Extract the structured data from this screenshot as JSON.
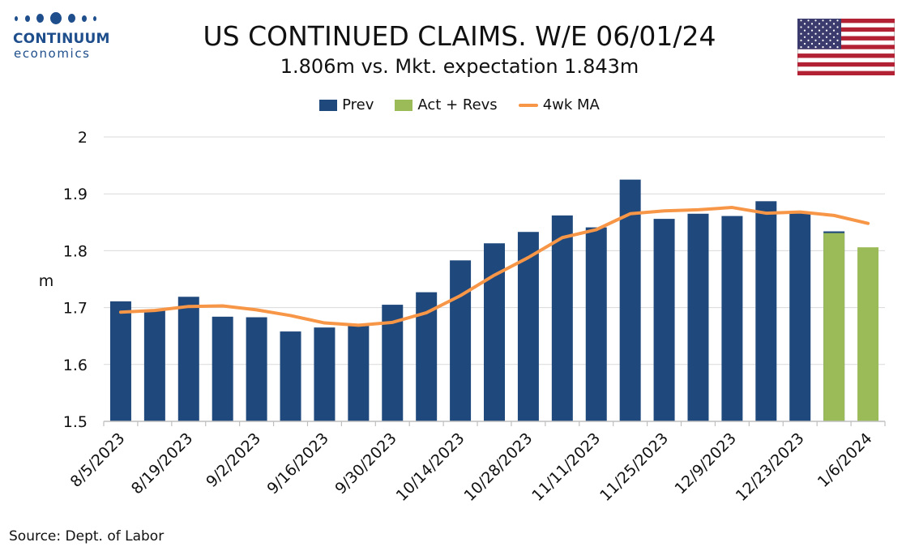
{
  "logo": {
    "word": "CONTINUUM",
    "sub": "economics",
    "icon": "continuum-logo-dots",
    "color": "#1f4e8c"
  },
  "flag": {
    "icon": "us-flag-icon"
  },
  "colors": {
    "prev": "#1f497d",
    "act": "#9bbb59",
    "ma": "#f79646",
    "grid": "#d9d9d9",
    "axis": "#bfbfbf"
  },
  "chart_data": {
    "type": "bar",
    "title": "US CONTINUED CLAIMS. W/E 06/01/24",
    "subtitle": "1.806m vs. Mkt. expectation 1.843m",
    "xlabel": "",
    "ylabel": "m",
    "ylim": [
      1.5,
      2.0
    ],
    "yticks": [
      1.5,
      1.6,
      1.7,
      1.8,
      1.9,
      2.0
    ],
    "ytick_labels": [
      "1.5",
      "1.6",
      "1.7",
      "1.8",
      "1.9",
      "2"
    ],
    "grid": true,
    "legend_position": "top-center",
    "tick_labels": [
      "8/5/2023",
      "8/19/2023",
      "9/2/2023",
      "9/16/2023",
      "9/30/2023",
      "10/14/2023",
      "10/28/2023",
      "11/11/2023",
      "11/25/2023",
      "12/9/2023",
      "12/23/2023",
      "1/6/2024"
    ],
    "series": [
      {
        "name": "Prev",
        "type": "bar",
        "values": [
          1.711,
          1.696,
          1.719,
          1.684,
          1.683,
          1.658,
          1.665,
          1.668,
          1.705,
          1.727,
          1.783,
          1.813,
          1.833,
          1.862,
          1.841,
          1.925,
          1.856,
          1.865,
          1.861,
          1.887,
          1.868,
          1.834,
          null
        ]
      },
      {
        "name": "Act + Revs",
        "type": "bar",
        "values": [
          null,
          null,
          null,
          null,
          null,
          null,
          null,
          null,
          null,
          null,
          null,
          null,
          null,
          null,
          null,
          null,
          null,
          null,
          null,
          null,
          null,
          1.831,
          1.806
        ]
      },
      {
        "name": "4wk MA",
        "type": "line",
        "values": [
          1.692,
          1.695,
          1.702,
          1.703,
          1.696,
          1.686,
          1.673,
          1.669,
          1.674,
          1.691,
          1.721,
          1.757,
          1.788,
          1.823,
          1.837,
          1.865,
          1.87,
          1.872,
          1.876,
          1.866,
          1.868,
          1.862,
          1.848
        ]
      }
    ],
    "source": "Source: Dept. of Labor"
  }
}
